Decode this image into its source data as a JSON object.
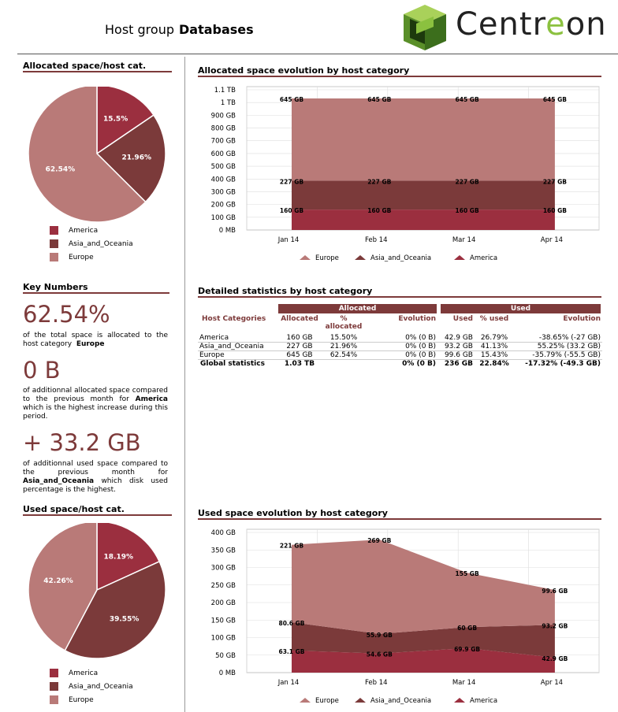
{
  "header": {
    "prefix": "Host group",
    "name": "Databases",
    "logo_text_a": "Centr",
    "logo_text_b": "e",
    "logo_text_c": "on"
  },
  "colors": {
    "america": "#9b2f3f",
    "asia": "#7b3a3a",
    "europe": "#b97a78",
    "accent": "#7d3a3a"
  },
  "legend": [
    "America",
    "Asia_and_Oceania",
    "Europe"
  ],
  "pie_allocated": {
    "title": "Allocated space/host cat.",
    "chart_data": {
      "type": "pie",
      "labels": [
        "America",
        "Asia_and_Oceania",
        "Europe"
      ],
      "values": [
        15.5,
        21.96,
        62.54
      ],
      "value_labels": [
        "15.5%",
        "21.96%",
        "62.54%"
      ]
    }
  },
  "pie_used": {
    "title": "Used space/host cat.",
    "chart_data": {
      "type": "pie",
      "labels": [
        "America",
        "Asia_and_Oceania",
        "Europe"
      ],
      "values": [
        18.19,
        39.55,
        42.26
      ],
      "value_labels": [
        "18.19%",
        "39.55%",
        "42.26%"
      ]
    }
  },
  "key_numbers": {
    "title": "Key Numbers",
    "k1_value": "62.54%",
    "k1_text": "of the total space is allocated to the host category",
    "k1_bold": "Europe",
    "k2_value": "0 B",
    "k2_text_a": "of additionnal allocated space compared to the previous month for",
    "k2_bold": "America",
    "k2_text_b": "which is the highest increase during this period.",
    "k3_value": "+ 33.2 GB",
    "k3_text_a": "of additionnal used space compared to the previous month for",
    "k3_bold": "Asia_and_Oceania",
    "k3_text_b": "which disk used percentage is the highest."
  },
  "alloc_evolution": {
    "title": "Allocated space evolution by host category",
    "chart_data": {
      "type": "area",
      "categories": [
        "Jan 14",
        "Feb 14",
        "Mar 14",
        "Apr 14"
      ],
      "y_ticks": [
        "0 MB",
        "100 GB",
        "200 GB",
        "300 GB",
        "400 GB",
        "500 GB",
        "600 GB",
        "700 GB",
        "800 GB",
        "900 GB",
        "1 TB",
        "1.1 TB"
      ],
      "series": [
        {
          "name": "America",
          "values": [
            160,
            160,
            160,
            160
          ],
          "labels": [
            "160 GB",
            "160 GB",
            "160 GB",
            "160 GB"
          ]
        },
        {
          "name": "Asia_and_Oceania",
          "values": [
            227,
            227,
            227,
            227
          ],
          "labels": [
            "227 GB",
            "227 GB",
            "227 GB",
            "227 GB"
          ]
        },
        {
          "name": "Europe",
          "values": [
            645,
            645,
            645,
            645
          ],
          "labels": [
            "645 GB",
            "645 GB",
            "645 GB",
            "645 GB"
          ]
        }
      ]
    }
  },
  "used_evolution": {
    "title": "Used space evolution by host category",
    "chart_data": {
      "type": "area",
      "categories": [
        "Jan 14",
        "Feb 14",
        "Mar 14",
        "Apr 14"
      ],
      "y_ticks": [
        "0 MB",
        "50 GB",
        "100 GB",
        "150 GB",
        "200 GB",
        "250 GB",
        "300 GB",
        "350 GB",
        "400 GB"
      ],
      "ylim": [
        0,
        400
      ],
      "series": [
        {
          "name": "America",
          "values": [
            63.1,
            54.6,
            69.9,
            42.9
          ],
          "labels": [
            "63.1 GB",
            "54.6 GB",
            "69.9 GB",
            "42.9 GB"
          ]
        },
        {
          "name": "Asia_and_Oceania",
          "values": [
            80.6,
            55.9,
            60,
            93.2
          ],
          "labels": [
            "80.6 GB",
            "55.9 GB",
            "60 GB",
            "93.2 GB"
          ]
        },
        {
          "name": "Europe",
          "values": [
            221,
            269,
            155,
            99.6
          ],
          "labels": [
            "221 GB",
            "269 GB",
            "155 GB",
            "99.6 GB"
          ]
        }
      ]
    }
  },
  "stats": {
    "title": "Detailed statistics by host category",
    "group_allocated": "Allocated",
    "group_used": "Used",
    "headers": [
      "Host Categories",
      "Allocated",
      "% allocated",
      "Evolution",
      "Used",
      "% used",
      "Evolution"
    ],
    "rows": [
      [
        "America",
        "160 GB",
        "15.50%",
        "0% (0 B)",
        "42.9 GB",
        "26.79%",
        "-38.65% (-27 GB)"
      ],
      [
        "Asia_and_Oceania",
        "227 GB",
        "21.96%",
        "0% (0 B)",
        "93.2 GB",
        "41.13%",
        "55.25% (33.2 GB)"
      ],
      [
        "Europe",
        "645 GB",
        "62.54%",
        "0% (0 B)",
        "99.6 GB",
        "15.43%",
        "-35.79% (-55.5 GB)"
      ]
    ],
    "global": [
      "Global statistics",
      "1.03 TB",
      "",
      "0% (0 B)",
      "236 GB",
      "22.84%",
      "-17.32% (-49.3 GB)"
    ]
  }
}
